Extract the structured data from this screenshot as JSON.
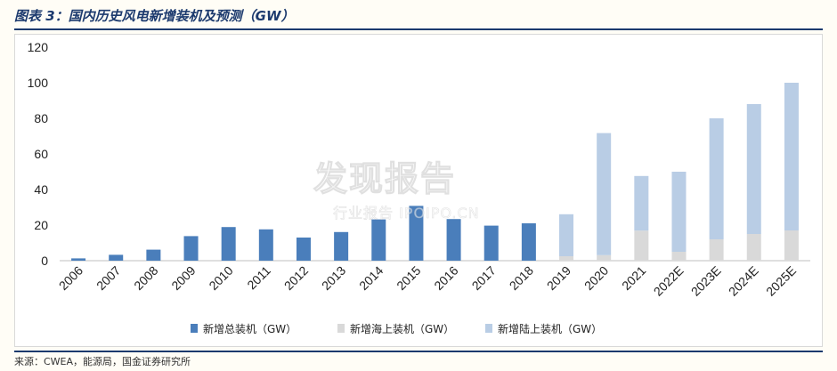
{
  "header": {
    "title": "图表 3：国内历史风电新增装机及预测（GW）"
  },
  "footer": {
    "source": "来源：CWEA，能源局，国金证券研究所"
  },
  "watermark": {
    "brand": "发现报告",
    "tagline": "行业报告  IPOIPO.CN"
  },
  "colors": {
    "total": "#4a7ebb",
    "offshore": "#d9d9d9",
    "onshore": "#b9cde5",
    "title": "#1c3a6e"
  },
  "chart_data": {
    "type": "bar",
    "title": "",
    "xlabel": "",
    "ylabel": "",
    "ylim": [
      0,
      120
    ],
    "yticks": [
      "0",
      "20",
      "40",
      "60",
      "80",
      "100",
      "120"
    ],
    "categories": [
      "2006",
      "2007",
      "2008",
      "2009",
      "2010",
      "2011",
      "2012",
      "2013",
      "2014",
      "2015",
      "2016",
      "2017",
      "2018",
      "2019",
      "2020",
      "2021",
      "2022E",
      "2023E",
      "2024E",
      "2025E"
    ],
    "stacked": true,
    "grid": false,
    "legend_position": "bottom",
    "series": [
      {
        "name": "新增总装机（GW）",
        "color": "#4a7ebb",
        "values": [
          1.3,
          3.3,
          6.2,
          13.8,
          18.9,
          17.6,
          13.0,
          16.1,
          23.2,
          30.8,
          23.4,
          19.7,
          21.0,
          null,
          null,
          null,
          null,
          null,
          null,
          null
        ]
      },
      {
        "name": "新增海上装机（GW）",
        "color": "#d9d9d9",
        "values": [
          null,
          null,
          null,
          null,
          null,
          null,
          null,
          null,
          null,
          null,
          null,
          null,
          null,
          2.5,
          3.1,
          16.9,
          5.0,
          12.0,
          15.0,
          17.0
        ]
      },
      {
        "name": "新增陆上装机（GW）",
        "color": "#b9cde5",
        "values": [
          null,
          null,
          null,
          null,
          null,
          null,
          null,
          null,
          null,
          null,
          null,
          null,
          null,
          23.6,
          68.6,
          30.7,
          45.0,
          68.0,
          73.0,
          83.0
        ]
      }
    ]
  }
}
